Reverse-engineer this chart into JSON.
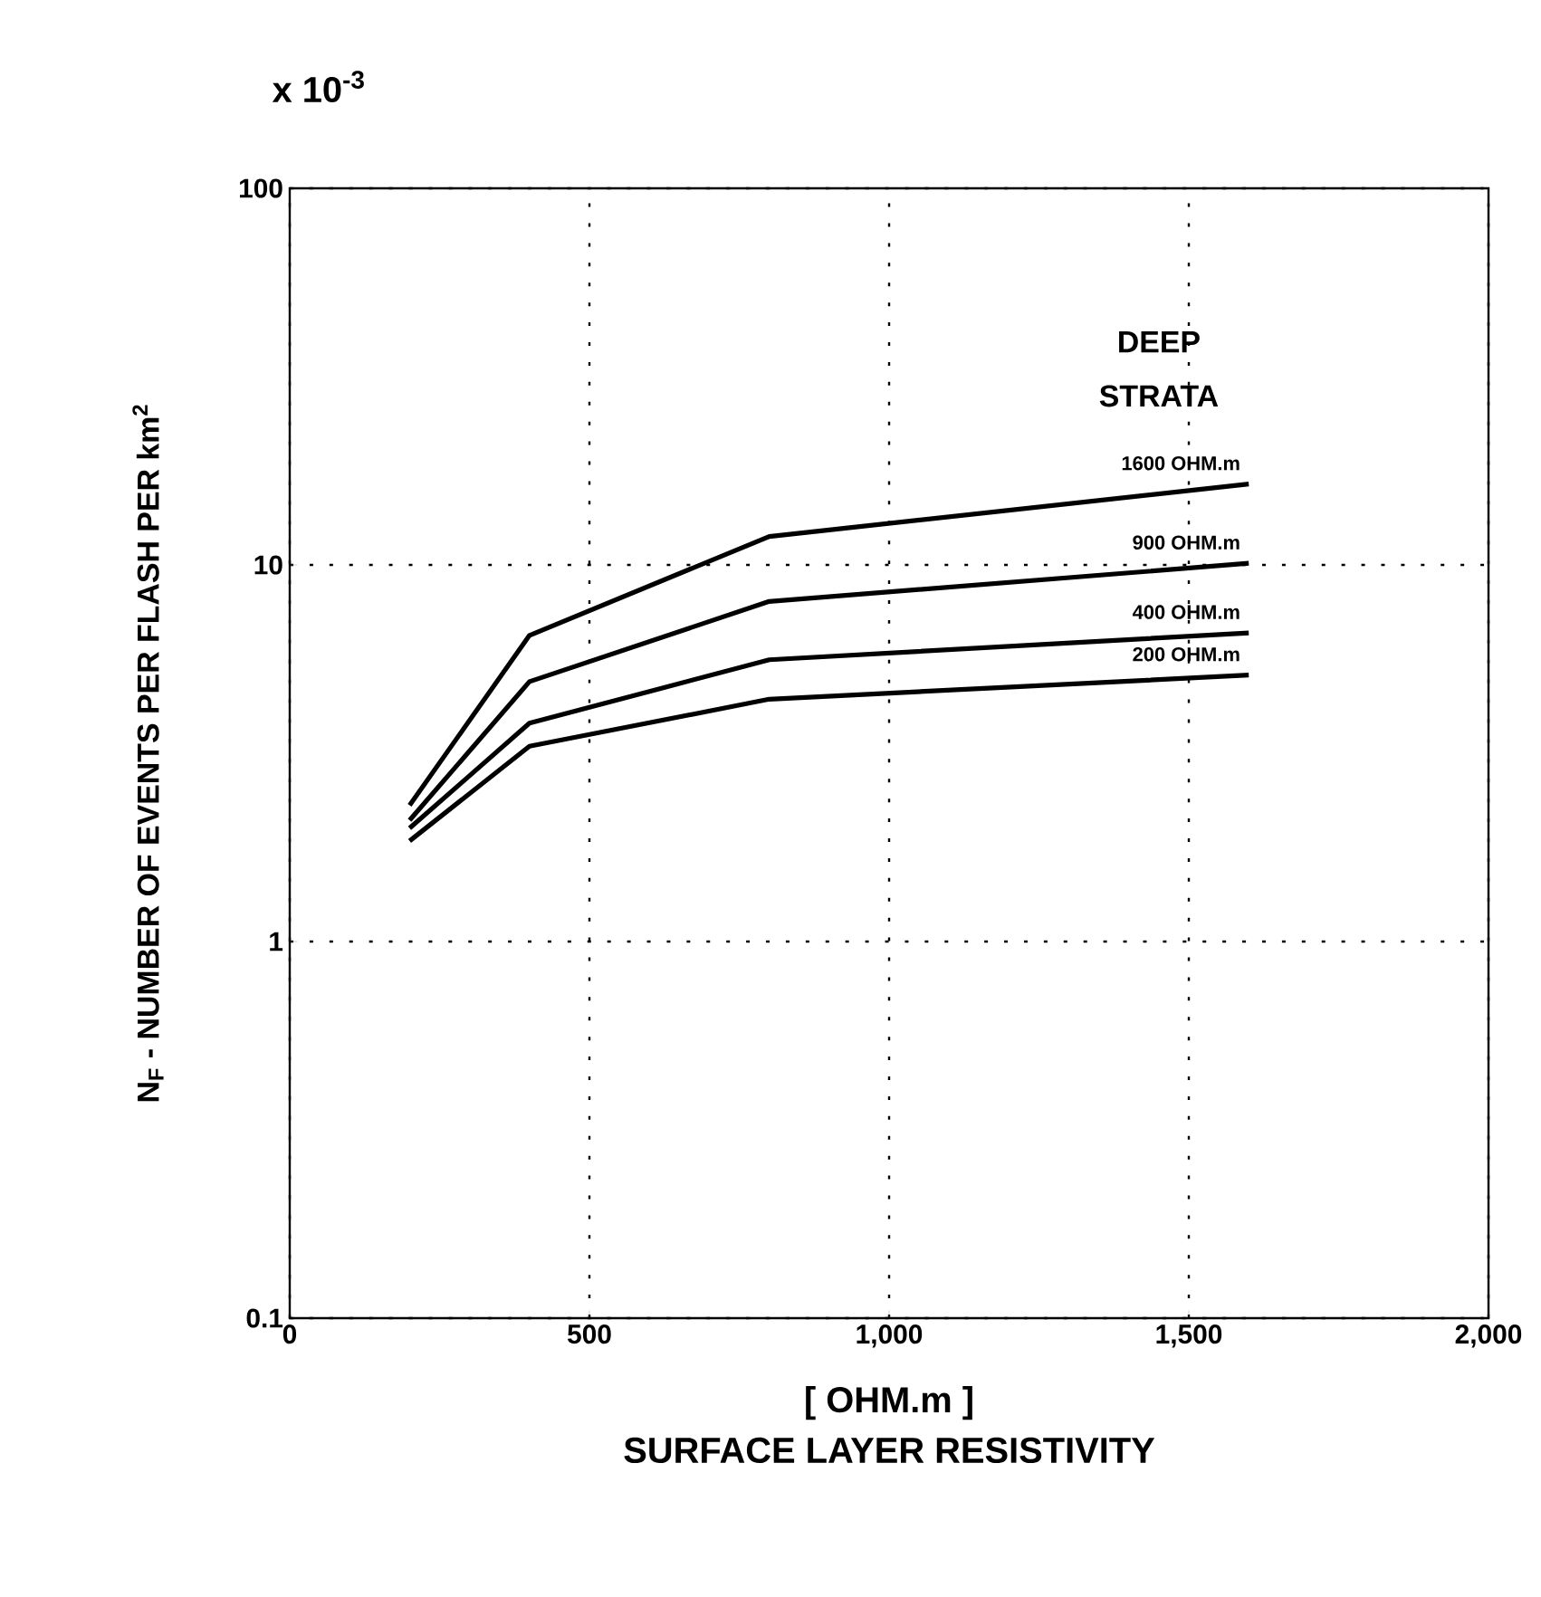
{
  "chart_data": {
    "type": "line",
    "ylabel": "N$_{F}$ - NUMBER OF EVENTS PER FLASH PER km$^{2}$",
    "xlabel": "SURFACE LAYER RESISTIVITY",
    "legend_title": "DEEP STRATA",
    "annotations": [
      "x 10$^{-3}$",
      "[ OHM.m ]"
    ],
    "x": [
      200,
      400,
      800,
      1600
    ],
    "series": [
      {
        "name": "1600 OHM.m",
        "color": "#000000",
        "values": [
          2.3,
          6.5,
          11.9,
          16.4
        ]
      },
      {
        "name": "900 OHM.m",
        "color": "#000000",
        "values": [
          2.1,
          4.9,
          8.0,
          10.1
        ]
      },
      {
        "name": "400 OHM.m",
        "color": "#000000",
        "values": [
          2.0,
          3.8,
          5.6,
          6.6
        ]
      },
      {
        "name": "200 OHM.m",
        "color": "#000000",
        "values": [
          1.85,
          3.3,
          4.4,
          5.1
        ]
      }
    ],
    "xlim": [
      0,
      2000
    ],
    "xticks": [
      0,
      500,
      {
        "value": 1000,
        "label": "1,000"
      },
      {
        "value": 1500,
        "label": "1,500"
      },
      {
        "value": 2000,
        "label": "2,000"
      }
    ],
    "ylim": [
      0.1,
      100
    ],
    "yticks": [
      0.1,
      1,
      10,
      100
    ],
    "log": "y",
    "grid": true,
    "legend": false,
    "marker": "none",
    "line_style": "solid"
  }
}
